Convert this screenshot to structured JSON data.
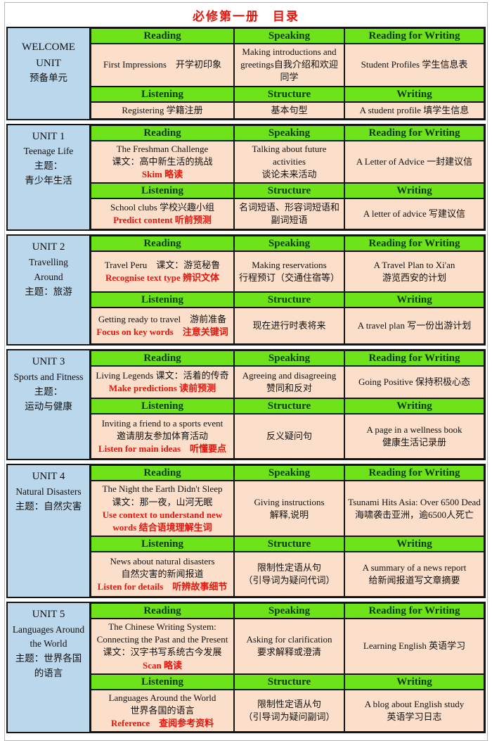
{
  "title": "必修第一册　目录",
  "colors": {
    "title_red": "#e3170d",
    "note_red": "#e3170d",
    "header_green": "#6fe31a",
    "header_text_green": "#073a00",
    "cell_pink": "#fbdfca",
    "unit_blue": "#bad7ec",
    "border_black": "#151515"
  },
  "headers": {
    "row1": [
      "Reading",
      "Speaking",
      "Reading for Writing"
    ],
    "row2": [
      "Listening",
      "Structure",
      "Writing"
    ]
  },
  "units": [
    {
      "unit_no": "WELCOME\nUNIT",
      "unit_desc": "预备单元",
      "reading": {
        "text": "First Impressions　开学初印象"
      },
      "speaking": {
        "text": "Making introductions and greetings自我介绍和欢迎同学"
      },
      "reading_for_writing": {
        "text": "Student Profiles 学生信息表"
      },
      "listening": {
        "text": "Registering 学籍注册"
      },
      "structure": {
        "text": "基本句型"
      },
      "writing": {
        "text": "A student profile 填学生信息"
      }
    },
    {
      "unit_no": "UNIT 1",
      "unit_desc": "Teenage Life\n主题：\n青少年生活",
      "reading": {
        "text": "The Freshman Challenge\n课文：高中新生活的挑战",
        "note": "Skim 略读"
      },
      "speaking": {
        "text": "Talking about future activities\n谈论未来活动"
      },
      "reading_for_writing": {
        "text": "A Letter of Advice 一封建议信"
      },
      "listening": {
        "text": "School clubs 学校兴趣小组",
        "note": "Predict content 听前预测"
      },
      "structure": {
        "text": "名词短语、形容词短语和\n副词短语"
      },
      "writing": {
        "text": "A letter of advice 写建议信"
      }
    },
    {
      "unit_no": "UNIT 2",
      "unit_desc": "Travelling\nAround\n主题：旅游",
      "reading": {
        "text": "Travel Peru　课文：游览秘鲁",
        "note": "Recognise text type 辨识文体"
      },
      "speaking": {
        "text": "Making reservations\n行程预订（交通住宿等）"
      },
      "reading_for_writing": {
        "text": "A Travel Plan to Xi'an\n游览西安的计划"
      },
      "listening": {
        "text": "Getting ready to travel　游前准备",
        "note": "Focus on key words　注意关键词"
      },
      "structure": {
        "text": "现在进行时表将来"
      },
      "writing": {
        "text": "A travel plan 写一份出游计划"
      }
    },
    {
      "unit_no": "UNIT 3",
      "unit_desc": "Sports and Fitness\n主题：\n运动与健康",
      "reading": {
        "text": "Living Legends 课文：活着的传奇",
        "note": "Make predictions 读前预测"
      },
      "speaking": {
        "text": "Agreeing and disagreeing\n赞同和反对"
      },
      "reading_for_writing": {
        "text": "Going Positive 保持积极心态"
      },
      "listening": {
        "text": "Inviting a friend to a sports event\n邀请朋友参加体育活动",
        "note": "Listen for main ideas　听懂要点"
      },
      "structure": {
        "text": "反义疑问句"
      },
      "writing": {
        "text": "A page in a wellness book\n健康生活记录册"
      }
    },
    {
      "unit_no": "UNIT 4",
      "unit_desc": "Natural Disasters\n主题：自然灾害",
      "reading": {
        "text": "The Night the Earth Didn't Sleep\n课文：那一夜，山河无眠",
        "note": "Use context to understand new words 结合语境理解生词"
      },
      "speaking": {
        "text": "Giving instructions\n解释,说明"
      },
      "reading_for_writing": {
        "text": "Tsunami Hits Asia: Over 6500 Dead\n海啸袭击亚洲，逾6500人死亡"
      },
      "listening": {
        "text": "News about natural disasters\n自然灾害的新闻报道",
        "note": "Listen for details　听辨故事细节"
      },
      "structure": {
        "text": "限制性定语从句\n（引导词为疑问代词）"
      },
      "writing": {
        "text": "A summary of a news report\n给新闻报道写文章摘要"
      }
    },
    {
      "unit_no": "UNIT 5",
      "unit_desc": "Languages Around\nthe World\n主题：世界各国\n的语言",
      "reading": {
        "text": "The Chinese Writing System:\nConnecting the Past and the Present\n课文：汉字书写系统古今发展",
        "note": "Scan 略读"
      },
      "speaking": {
        "text": "Asking for clarification\n要求解释或澄清"
      },
      "reading_for_writing": {
        "text": "Learning English 英语学习"
      },
      "listening": {
        "text": "Languages Around the World\n世界各国的语言",
        "note": "Reference　查阅参考资料"
      },
      "structure": {
        "text": "限制性定语从句\n（引导词为疑问副词）"
      },
      "writing": {
        "text": "A blog about English study\n英语学习日志"
      }
    }
  ]
}
